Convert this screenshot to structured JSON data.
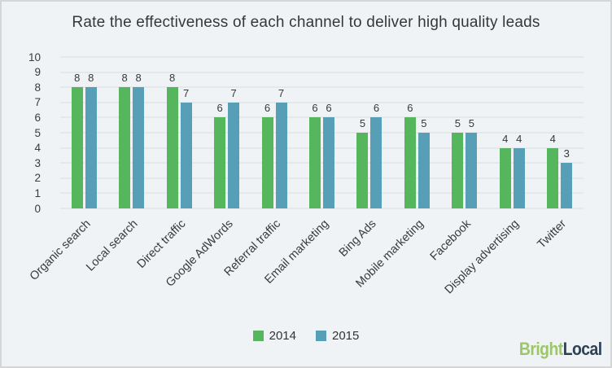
{
  "chart_data": {
    "type": "bar",
    "title": "Rate the effectiveness of each channel to deliver high quality leads",
    "categories": [
      "Organic search",
      "Local search",
      "Direct traffic",
      "Google AdWords",
      "Referral traffic",
      "Email marketing",
      "Bing Ads",
      "Mobile marketing",
      "Facebook",
      "Display advertising",
      "Twitter"
    ],
    "series": [
      {
        "name": "2014",
        "color": "#55b65e",
        "values": [
          8,
          8,
          8,
          6,
          6,
          6,
          5,
          6,
          5,
          4,
          4
        ]
      },
      {
        "name": "2015",
        "color": "#569fb7",
        "values": [
          8,
          8,
          7,
          7,
          7,
          6,
          6,
          5,
          5,
          4,
          3
        ]
      }
    ],
    "xlabel": "",
    "ylabel": "",
    "ylim": [
      0,
      10
    ],
    "yticks": [
      0,
      1,
      2,
      3,
      4,
      5,
      6,
      7,
      8,
      9,
      10
    ],
    "grid": true,
    "value_labels": true,
    "legend_position": "bottom-center"
  },
  "branding": {
    "logo_part1": "Bright",
    "logo_part2": "Local",
    "logo_color1": "#9cc766",
    "logo_color2": "#2d4156"
  },
  "colors": {
    "background": "#eff3f6",
    "border": "#d4d6d7",
    "gridline": "#d9dcde",
    "text": "#3a3a3a"
  }
}
